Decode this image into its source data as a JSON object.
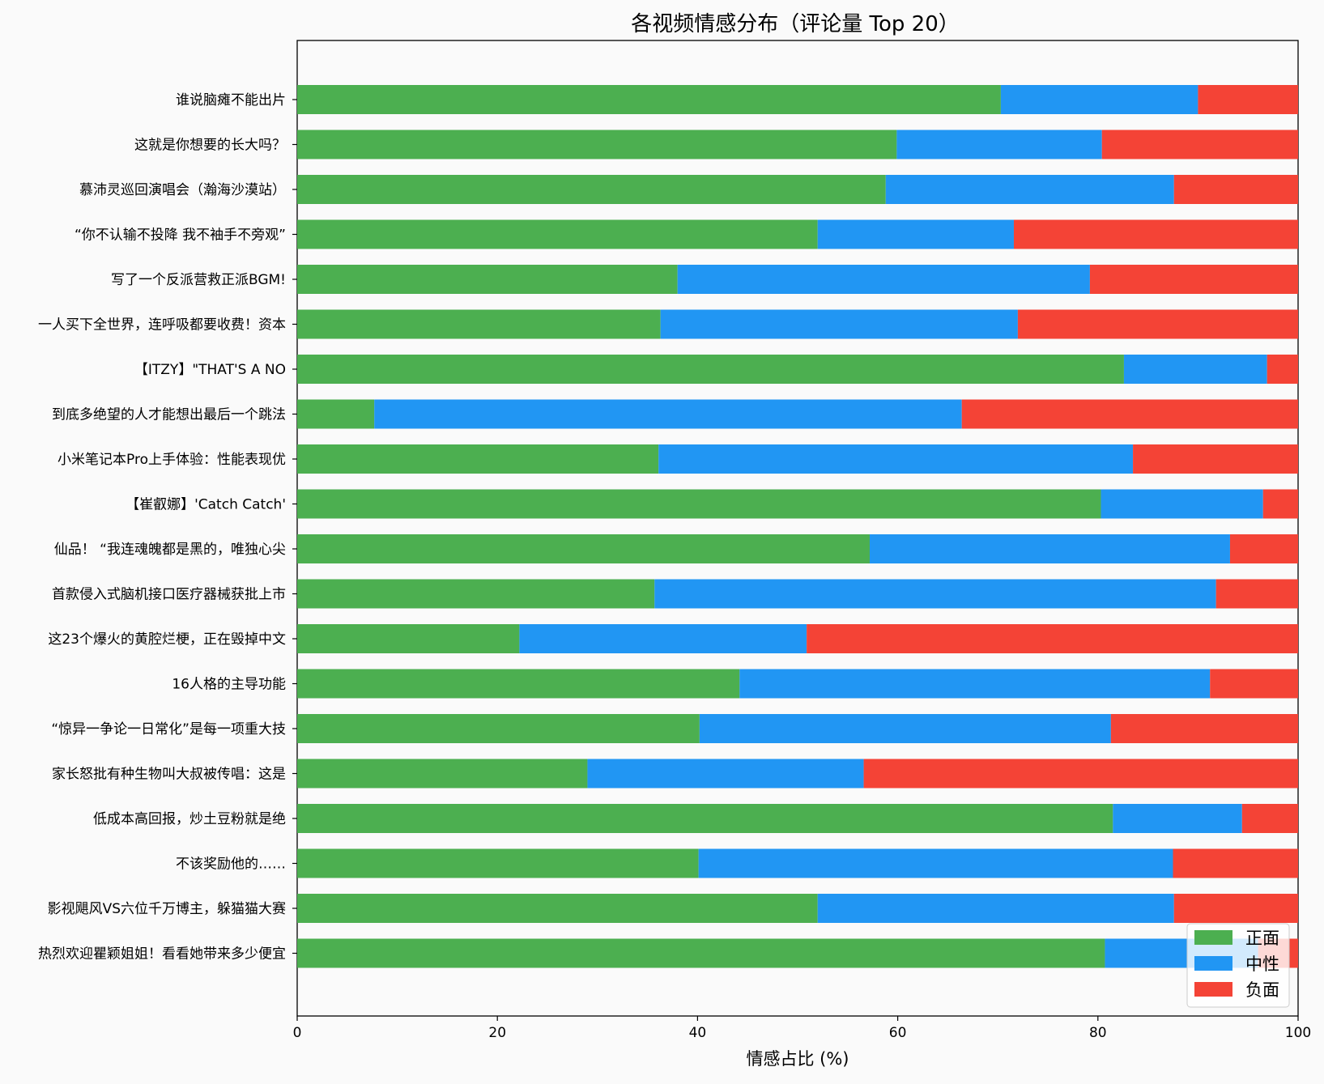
{
  "chart_data": {
    "type": "bar",
    "orientation": "horizontal",
    "stacked": true,
    "title": "各视频情感分布（评论量 Top 20）",
    "xlabel": "情感占比 (%)",
    "ylabel": "",
    "xlim": [
      0,
      100
    ],
    "xticks": [
      0,
      20,
      40,
      60,
      80,
      100
    ],
    "grid": false,
    "legend_position": "lower-right",
    "categories": [
      "谁说脑瘫不能出片",
      "这就是你想要的长大吗？",
      "慕沛灵巡回演唱会（瀚海沙漠站）",
      "“你不认输不投降 我不袖手不旁观”",
      "写了一个反派营救正派BGM!",
      "一人买下全世界，连呼吸都要收费！资本",
      "【ITZY】\"THAT'S A NO",
      "到底多绝望的人才能想出最后一个跳法",
      "小米笔记本Pro上手体验：性能表现优",
      "【崔叡娜】'Catch Catch'",
      "仙品！ “我连魂魄都是黑的，唯独心尖",
      "首款侵入式脑机接口医疗器械获批上市",
      "这23个爆火的黄腔烂梗，正在毁掉中文",
      "16人格的主导功能",
      "“惊异一争论一日常化”是每一项重大技",
      "家长怒批有种生物叫大叔被传唱：这是",
      "低成本高回报，炒土豆粉就是绝",
      "不该奖励他的……",
      "影视飓风VS六位千万博主，躲猫猫大赛",
      "热烈欢迎瞿颖姐姐！看看她带来多少便宜"
    ],
    "series": [
      {
        "name": "正面",
        "color": "#4caf50",
        "values": [
          70.3,
          59.9,
          58.8,
          52.0,
          38.0,
          36.3,
          82.6,
          7.7,
          36.1,
          80.3,
          57.2,
          35.7,
          22.2,
          44.2,
          40.2,
          29.0,
          81.5,
          40.1,
          52.0,
          80.7
        ]
      },
      {
        "name": "中性",
        "color": "#2196f3",
        "values": [
          19.7,
          20.5,
          28.8,
          19.6,
          41.2,
          35.7,
          14.3,
          58.7,
          47.4,
          16.2,
          36.0,
          56.1,
          28.7,
          47.0,
          41.1,
          27.6,
          12.9,
          47.4,
          35.6,
          15.3
        ]
      },
      {
        "name": "负面",
        "color": "#f44336",
        "values": [
          10.0,
          19.6,
          12.4,
          28.4,
          20.8,
          28.0,
          3.1,
          33.6,
          16.5,
          3.5,
          6.8,
          8.2,
          49.1,
          8.8,
          18.7,
          43.4,
          5.6,
          12.5,
          12.4,
          4.0
        ]
      }
    ]
  }
}
